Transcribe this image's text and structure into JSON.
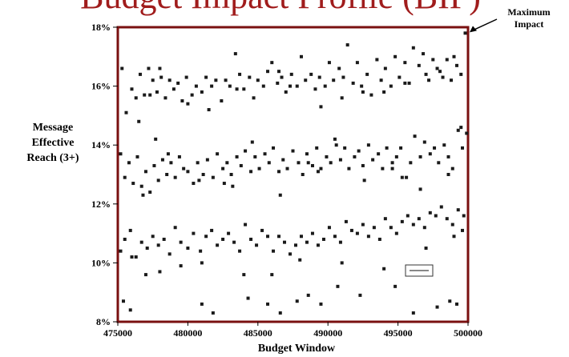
{
  "chart_data": {
    "type": "scatter",
    "title": "Budget Impact Profile (BIP)",
    "xlabel": "Budget Window",
    "ylabel": [
      "Message",
      "Effective",
      "Reach (3+)"
    ],
    "xlim": [
      475000,
      500000
    ],
    "ylim": [
      8,
      18
    ],
    "x_ticks": [
      475000,
      480000,
      485000,
      490000,
      495000,
      500000
    ],
    "y_ticks": [
      8,
      10,
      12,
      14,
      16,
      18
    ],
    "y_tick_labels": [
      "8%",
      "10%",
      "12%",
      "14%",
      "16%",
      "18%"
    ],
    "annotation": {
      "lines": [
        "Maximum",
        "Impact"
      ],
      "x": 500000,
      "y": 17.8
    },
    "legend_box": "",
    "grid": false,
    "frame_color": "#7a1010",
    "point_color": "#1a1a1a",
    "series": [
      {
        "values_x": [
          475300,
          475600,
          476000,
          476300,
          476600,
          476900,
          477200,
          477500,
          477800,
          478100,
          478400,
          478700,
          479000,
          479300,
          479600,
          479900,
          480300,
          480600,
          481000,
          481300,
          481700,
          482000,
          482400,
          482700,
          483000,
          483400,
          483700,
          484000,
          484400,
          484700,
          485000,
          485400,
          485700,
          486000,
          486400,
          486700,
          487000,
          487400,
          487800,
          488100,
          488400,
          488800,
          489100,
          489400,
          489800,
          490100,
          490400,
          490800,
          491100,
          491400,
          491800,
          492100,
          492400,
          492800,
          493100,
          493500,
          493800,
          494100,
          494500,
          494800,
          495100,
          495500,
          495800,
          496100,
          496500,
          496800,
          497200,
          497500,
          497800,
          498200,
          498500,
          498800,
          499200,
          499500,
          499800,
          476500,
          478000,
          480000,
          483500,
          486500,
          489500,
          492500,
          495500,
          498000,
          477300,
          481500,
          487300,
          491000,
          494000,
          497000,
          499000
        ],
        "values_y": [
          16.6,
          15.1,
          15.9,
          15.6,
          16.4,
          15.7,
          16.6,
          16.2,
          15.8,
          16.3,
          15.6,
          16.2,
          15.9,
          16.1,
          15.5,
          16.3,
          15.7,
          16.0,
          15.8,
          16.3,
          16.0,
          16.2,
          15.5,
          16.2,
          16.0,
          17.1,
          16.4,
          15.9,
          16.3,
          15.6,
          16.2,
          16.0,
          16.5,
          16.8,
          16.1,
          16.3,
          15.8,
          16.4,
          16.0,
          17.0,
          16.2,
          16.4,
          15.9,
          16.3,
          16.0,
          16.8,
          16.2,
          16.6,
          16.3,
          17.4,
          16.1,
          16.8,
          16.0,
          16.4,
          15.7,
          16.9,
          16.2,
          16.6,
          16.0,
          17.0,
          16.3,
          16.8,
          16.1,
          17.3,
          16.7,
          17.1,
          16.2,
          16.9,
          16.6,
          16.3,
          16.9,
          16.2,
          16.7,
          16.4,
          17.8,
          14.8,
          16.6,
          15.4,
          15.9,
          16.5,
          15.3,
          15.8,
          16.1,
          16.5,
          15.7,
          15.2,
          16.0,
          15.6,
          15.8,
          16.4,
          17.0
        ]
      },
      {
        "values_x": [
          475200,
          475500,
          475800,
          476100,
          476400,
          476700,
          477000,
          477300,
          477600,
          477900,
          478200,
          478500,
          478800,
          479100,
          479400,
          479700,
          480000,
          480400,
          480700,
          481100,
          481400,
          481800,
          482100,
          482500,
          482800,
          483100,
          483500,
          483800,
          484100,
          484500,
          484800,
          485100,
          485500,
          485800,
          486100,
          486500,
          486800,
          487100,
          487500,
          487900,
          488200,
          488500,
          488900,
          489200,
          489500,
          489900,
          490200,
          490500,
          490900,
          491200,
          491500,
          491900,
          492200,
          492500,
          492900,
          493200,
          493600,
          493900,
          494200,
          494600,
          494900,
          495200,
          495600,
          495900,
          496200,
          496600,
          496900,
          497300,
          497600,
          497900,
          498300,
          498600,
          498900,
          499300,
          499600,
          499900,
          476800,
          478600,
          480800,
          482600,
          484600,
          486600,
          488600,
          490600,
          492600,
          494600,
          496600,
          498600,
          477700,
          483200,
          489300,
          495300,
          499500
        ],
        "values_y": [
          13.7,
          12.9,
          13.4,
          12.7,
          13.6,
          12.6,
          13.1,
          12.4,
          13.3,
          12.8,
          13.5,
          13.0,
          13.4,
          12.9,
          13.6,
          13.2,
          13.1,
          12.7,
          13.4,
          13.0,
          13.5,
          12.9,
          13.7,
          13.2,
          13.4,
          13.0,
          13.6,
          13.3,
          13.8,
          13.1,
          13.6,
          13.2,
          13.7,
          13.4,
          13.9,
          13.1,
          13.5,
          13.2,
          13.8,
          13.4,
          13.0,
          13.7,
          13.3,
          13.9,
          13.2,
          13.6,
          13.4,
          14.2,
          13.5,
          13.9,
          13.2,
          13.6,
          13.8,
          13.3,
          14.0,
          13.5,
          13.7,
          13.2,
          13.9,
          13.4,
          13.6,
          13.9,
          12.9,
          13.4,
          14.3,
          13.6,
          14.1,
          13.7,
          13.9,
          13.4,
          14.0,
          13.6,
          13.2,
          14.5,
          13.9,
          14.4,
          12.3,
          13.7,
          12.8,
          12.7,
          14.1,
          12.3,
          13.4,
          14.0,
          12.8,
          13.2,
          12.5,
          13.0,
          14.2,
          12.6,
          13.1,
          12.9,
          14.6
        ]
      },
      {
        "values_x": [
          475200,
          475500,
          475900,
          476300,
          476700,
          477100,
          477500,
          477900,
          478300,
          478700,
          479100,
          479500,
          480000,
          480400,
          480900,
          481300,
          481700,
          482100,
          482500,
          482900,
          483300,
          483700,
          484100,
          484500,
          484900,
          485300,
          485700,
          486100,
          486500,
          486900,
          487300,
          487700,
          488100,
          488500,
          488900,
          489300,
          489700,
          490100,
          490500,
          490900,
          491300,
          491700,
          492100,
          492500,
          492900,
          493300,
          493700,
          494100,
          494500,
          494900,
          495300,
          495700,
          496100,
          496500,
          496900,
          497300,
          497700,
          498100,
          498500,
          498900,
          499300,
          499700,
          476000,
          478000,
          481000,
          484000,
          486000,
          488000,
          491000,
          494000,
          497000,
          499000,
          475400,
          475900,
          477000,
          479500,
          481000,
          481800,
          484300,
          485700,
          486600,
          487800,
          488600,
          489500,
          490700,
          492300,
          494800,
          496100,
          497800,
          498700,
          499200,
          499600
        ],
        "values_y": [
          10.4,
          10.8,
          11.1,
          10.2,
          10.7,
          10.5,
          10.9,
          10.6,
          10.8,
          10.3,
          11.2,
          10.7,
          10.5,
          11.0,
          10.4,
          10.9,
          11.1,
          10.6,
          10.8,
          11.0,
          10.7,
          10.4,
          11.3,
          10.8,
          10.6,
          11.1,
          10.9,
          10.4,
          10.9,
          10.7,
          10.3,
          10.6,
          10.9,
          10.7,
          11.0,
          10.6,
          10.8,
          11.2,
          10.9,
          10.7,
          11.4,
          11.1,
          11.0,
          11.3,
          10.9,
          11.2,
          10.8,
          11.5,
          11.2,
          11.0,
          11.4,
          11.6,
          11.3,
          11.5,
          11.2,
          11.7,
          11.6,
          11.9,
          11.5,
          11.3,
          11.8,
          11.6,
          10.2,
          9.7,
          10.0,
          9.6,
          9.6,
          10.1,
          10.0,
          9.8,
          10.5,
          10.9,
          8.7,
          8.4,
          9.6,
          9.9,
          8.6,
          8.3,
          8.8,
          8.6,
          8.3,
          8.7,
          8.9,
          8.6,
          9.2,
          8.9,
          9.2,
          8.3,
          8.5,
          8.7,
          8.6,
          11.1
        ]
      }
    ]
  }
}
